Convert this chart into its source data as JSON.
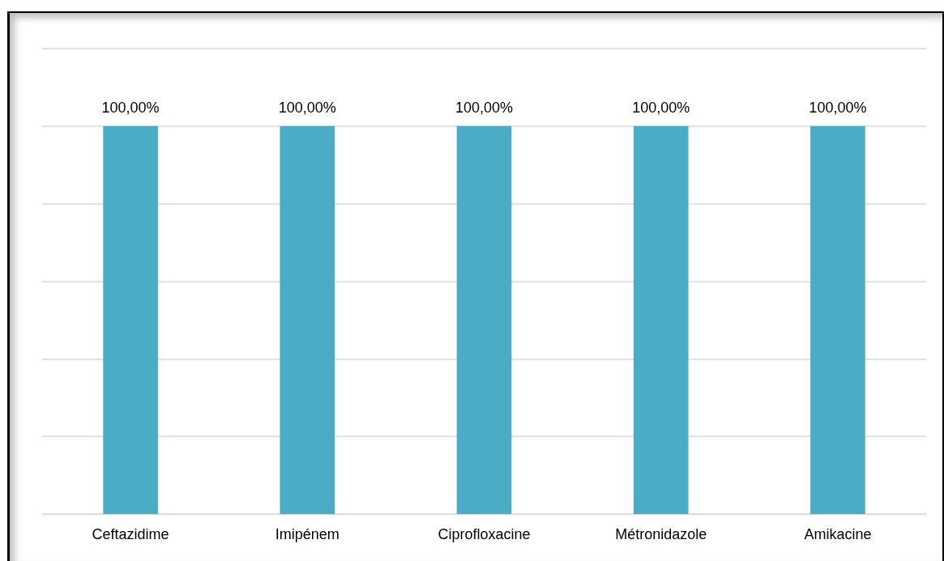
{
  "chart_data": {
    "type": "bar",
    "categories": [
      "Ceftazidime",
      "Imipénem",
      "Ciprofloxacine",
      "Métronidazole",
      "Amikacine"
    ],
    "values": [
      100,
      100,
      100,
      100,
      100
    ],
    "value_labels": [
      "100,00%",
      "100,00%",
      "100,00%",
      "100,00%",
      "100,00%"
    ],
    "color": "#4bacc6",
    "ylim": [
      0,
      120
    ],
    "yticks": [
      {
        "value": 0,
        "label": null
      },
      {
        "value": 20,
        "label": null
      },
      {
        "value": 40,
        "label": null
      },
      {
        "value": 60,
        "label": null
      },
      {
        "value": 80,
        "label": null
      },
      {
        "value": 100,
        "label": null
      },
      {
        "value": 120,
        "label": null
      }
    ],
    "tick_labels": "x",
    "grid": true
  }
}
